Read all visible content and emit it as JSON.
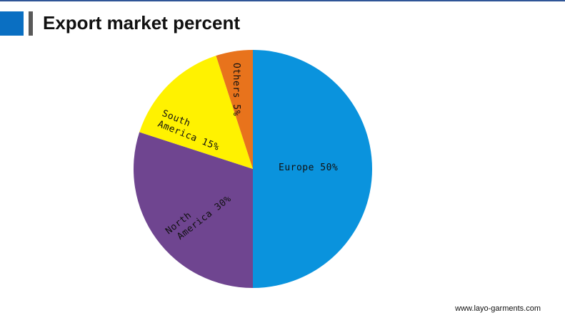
{
  "chart_data": {
    "type": "pie",
    "title": "Export market percent",
    "values": [
      50,
      30,
      15,
      5
    ],
    "value_labels": [
      [
        "Europe 50%"
      ],
      [
        "North",
        "America 30%"
      ],
      [
        "South",
        "America 15%"
      ],
      [
        "Others 5%"
      ]
    ],
    "colors": [
      "#0a93dd",
      "#6f4590",
      "#fff200",
      "#e8731c"
    ],
    "footer": "www.layo-garments.com"
  }
}
